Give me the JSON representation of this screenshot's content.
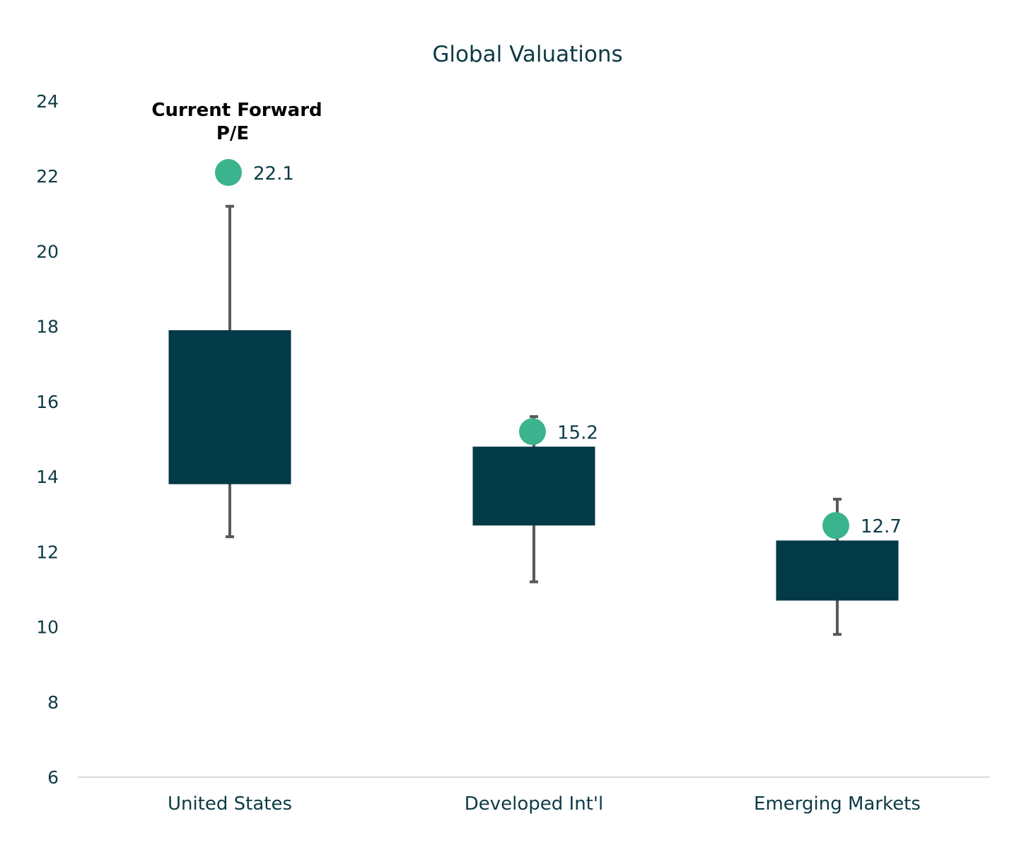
{
  "chart_data": {
    "type": "box",
    "title": "Global Valuations",
    "xlabel": "",
    "ylabel": "",
    "ylim": [
      6,
      24
    ],
    "yticks": [
      6,
      8,
      10,
      12,
      14,
      16,
      18,
      20,
      22,
      24
    ],
    "categories": [
      "United States",
      "Developed Int'l",
      "Emerging Markets"
    ],
    "series": [
      {
        "range_low": [
          12.4,
          11.2,
          9.8
        ],
        "box_low": [
          13.8,
          12.7,
          10.7
        ],
        "box_high": [
          17.9,
          14.8,
          12.3
        ],
        "range_high": [
          21.2,
          15.6,
          13.4
        ]
      },
      {
        "name": "Current Forward P/E",
        "values": [
          22.1,
          15.2,
          12.7
        ],
        "labels": [
          "22.1",
          "15.2",
          "12.7"
        ]
      }
    ],
    "annotation": {
      "lines": [
        "Current Forward",
        "P/E"
      ]
    },
    "grid": false,
    "legend": "none",
    "colors": {
      "box": "#033a47",
      "whisker": "#595959",
      "marker": "#3bb48e",
      "text": "#0d3b45",
      "axis_line": "#d9d9d9"
    }
  }
}
